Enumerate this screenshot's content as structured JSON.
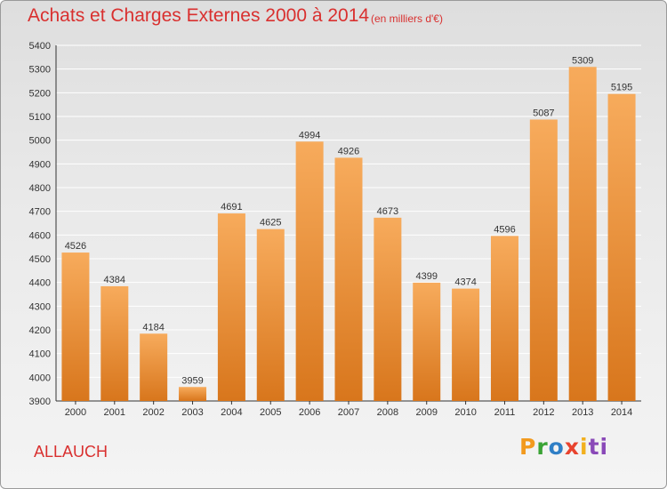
{
  "header": {
    "title": "Achats et Charges Externes 2000 à 2014",
    "subtitle": "(en milliers d'€)"
  },
  "footer": {
    "commune": "ALLAUCH",
    "logo_letters": [
      "P",
      "r",
      "o",
      "x",
      "i",
      "ti"
    ]
  },
  "colors": {
    "title": "#d9302f",
    "bar_light": "#f7ab5c",
    "bar_dark": "#d8761c",
    "grid": "#ffffff",
    "axis": "#333333"
  },
  "chart_data": {
    "type": "bar",
    "title": "Achats et Charges Externes 2000 à 2014",
    "subtitle": "(en milliers d'€)",
    "xlabel": "",
    "ylabel": "",
    "categories": [
      "2000",
      "2001",
      "2002",
      "2003",
      "2004",
      "2005",
      "2006",
      "2007",
      "2008",
      "2009",
      "2010",
      "2011",
      "2012",
      "2013",
      "2014"
    ],
    "values": [
      4526,
      4384,
      4184,
      3959,
      4691,
      4625,
      4994,
      4926,
      4673,
      4399,
      4374,
      4596,
      5087,
      5309,
      5195
    ],
    "ylim": [
      3900,
      5400
    ],
    "yticks": [
      3900,
      4000,
      4100,
      4200,
      4300,
      4400,
      4500,
      4600,
      4700,
      4800,
      4900,
      5000,
      5100,
      5200,
      5300,
      5400
    ],
    "grid": true,
    "data_labels": true,
    "legend": "none"
  }
}
